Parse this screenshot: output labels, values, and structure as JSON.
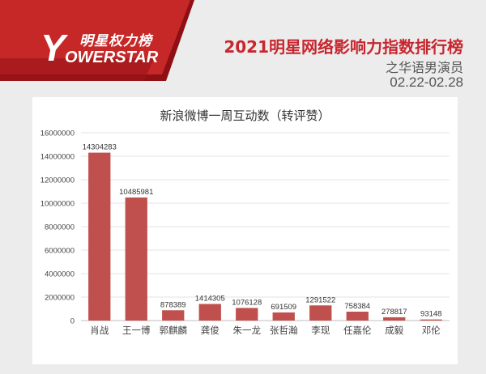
{
  "header": {
    "logo_cn": "明星权力榜",
    "logo_letter": "Y",
    "logo_en": "OWERSTAR",
    "title": "2021明星网络影响力指数排行榜",
    "subtitle": "之华语男演员",
    "date_range": "02.22-02.28"
  },
  "colors": {
    "accent": "#c8262e",
    "bar": "#c0504d",
    "banner_red": "#b71c1c"
  },
  "chart_data": {
    "type": "bar",
    "title": "新浪微博一周互动数（转评赞）",
    "categories": [
      "肖战",
      "王一博",
      "郭麒麟",
      "龚俊",
      "朱一龙",
      "张哲瀚",
      "李现",
      "任嘉伦",
      "成毅",
      "邓伦"
    ],
    "values": [
      14304283,
      10485981,
      878389,
      1414305,
      1076128,
      691509,
      1291522,
      758384,
      278817,
      93148
    ],
    "value_labels": [
      "14304283",
      "10485981",
      "878389",
      "1414305",
      "1076128",
      "691509",
      "1291522",
      "758384",
      "278817",
      "93148"
    ],
    "ylim": [
      0,
      16000000
    ],
    "yticks": [
      0,
      2000000,
      4000000,
      6000000,
      8000000,
      10000000,
      12000000,
      14000000,
      16000000
    ],
    "ytick_labels": [
      "0",
      "2000000",
      "4000000",
      "6000000",
      "8000000",
      "10000000",
      "12000000",
      "14000000",
      "16000000"
    ],
    "grid": true,
    "legend": "none"
  }
}
